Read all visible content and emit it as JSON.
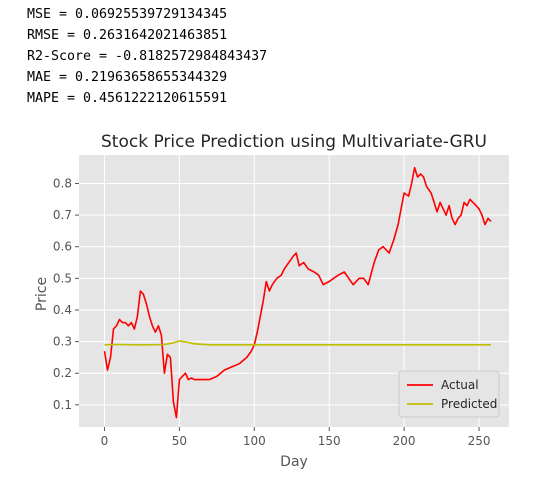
{
  "metrics": [
    "MSE = 0.06925539729134345",
    "RMSE = 0.2631642021463851",
    "R2-Score = -0.8182572984843437",
    "MAE = 0.21963658655344329",
    "MAPE = 0.4561222120615591"
  ],
  "chart_data": {
    "type": "line",
    "title": "Stock Price Prediction using Multivariate-GRU",
    "xlabel": "Day",
    "ylabel": "Price",
    "xlim": [
      -17,
      270
    ],
    "ylim": [
      0.03,
      0.89
    ],
    "xticks": [
      0,
      50,
      100,
      150,
      200,
      250
    ],
    "yticks": [
      0.1,
      0.2,
      0.3,
      0.4,
      0.5,
      0.6,
      0.7,
      0.8
    ],
    "grid": true,
    "background": "#e5e5e5",
    "legend_position": "lower-right",
    "series": [
      {
        "name": "Actual",
        "color": "#ff0000",
        "x": [
          0,
          2,
          4,
          6,
          8,
          10,
          12,
          14,
          16,
          18,
          20,
          22,
          24,
          26,
          28,
          30,
          32,
          34,
          36,
          38,
          40,
          42,
          44,
          46,
          48,
          50,
          52,
          54,
          56,
          58,
          60,
          65,
          70,
          75,
          80,
          85,
          90,
          95,
          98,
          100,
          102,
          104,
          106,
          108,
          110,
          112,
          115,
          118,
          120,
          123,
          126,
          128,
          130,
          133,
          136,
          140,
          143,
          146,
          150,
          153,
          156,
          160,
          163,
          166,
          170,
          173,
          176,
          180,
          183,
          186,
          190,
          193,
          196,
          200,
          203,
          205,
          207,
          209,
          211,
          213,
          215,
          218,
          220,
          222,
          224,
          226,
          228,
          230,
          232,
          234,
          236,
          238,
          240,
          242,
          244,
          246,
          248,
          250,
          252,
          254,
          256,
          258
        ],
        "y": [
          0.27,
          0.21,
          0.25,
          0.34,
          0.35,
          0.37,
          0.36,
          0.36,
          0.35,
          0.36,
          0.34,
          0.38,
          0.46,
          0.45,
          0.42,
          0.38,
          0.35,
          0.33,
          0.35,
          0.32,
          0.2,
          0.26,
          0.25,
          0.11,
          0.06,
          0.18,
          0.19,
          0.2,
          0.18,
          0.185,
          0.18,
          0.18,
          0.18,
          0.19,
          0.21,
          0.22,
          0.23,
          0.25,
          0.27,
          0.29,
          0.33,
          0.38,
          0.43,
          0.49,
          0.46,
          0.48,
          0.5,
          0.51,
          0.53,
          0.55,
          0.57,
          0.58,
          0.54,
          0.55,
          0.53,
          0.52,
          0.51,
          0.48,
          0.49,
          0.5,
          0.51,
          0.52,
          0.5,
          0.48,
          0.5,
          0.5,
          0.48,
          0.55,
          0.59,
          0.6,
          0.58,
          0.62,
          0.67,
          0.77,
          0.76,
          0.8,
          0.85,
          0.82,
          0.83,
          0.82,
          0.79,
          0.77,
          0.74,
          0.71,
          0.74,
          0.72,
          0.7,
          0.73,
          0.69,
          0.67,
          0.69,
          0.7,
          0.74,
          0.73,
          0.75,
          0.74,
          0.73,
          0.72,
          0.7,
          0.67,
          0.69,
          0.68
        ]
      },
      {
        "name": "Predicted",
        "color": "#bfbf00",
        "x": [
          0,
          10,
          20,
          30,
          40,
          45,
          50,
          55,
          60,
          70,
          80,
          100,
          150,
          200,
          258
        ],
        "y": [
          0.29,
          0.291,
          0.29,
          0.29,
          0.291,
          0.295,
          0.302,
          0.298,
          0.293,
          0.29,
          0.29,
          0.29,
          0.29,
          0.29,
          0.29
        ]
      }
    ]
  }
}
